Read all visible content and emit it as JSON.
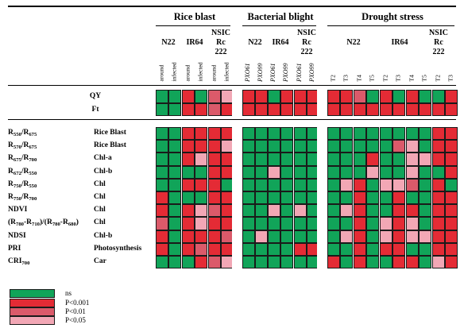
{
  "colors": {
    "ns": "#11a459",
    "p001": "#e42b35",
    "p01": "#db5a6a",
    "p05": "#f2a7b5",
    "gap": "#ffffff"
  },
  "header": {
    "groups": [
      "Rice blast",
      "Bacterial blight",
      "Drought stress"
    ],
    "genotypes": {
      "rb": [
        "N22",
        "IR64",
        "NSIC Rc 222"
      ],
      "bb": [
        "N22",
        "IR64",
        "NSIC Rc 222"
      ],
      "ds": [
        "N22",
        "IR64",
        "NSIC Rc 222"
      ]
    },
    "conditions": {
      "rb": [
        "around",
        "infected",
        "around",
        "infected",
        "around",
        "infected"
      ],
      "bb": [
        "PXO61",
        "PXO99",
        "PXO61",
        "PXO99",
        "PXO61",
        "PXO99"
      ],
      "ds": [
        "T2",
        "T3",
        "T4",
        "T5",
        "T2",
        "T3",
        "T4",
        "T5",
        "T2",
        "T3"
      ]
    }
  },
  "rows_top": [
    {
      "label": "QY"
    },
    {
      "label": "Ft"
    }
  ],
  "rows_main": [
    {
      "label_html": "R<sub>550</sub>/R<sub>675</sub>",
      "category": "Rice Blast"
    },
    {
      "label_html": "R<sub>570</sub>/R<sub>675</sub>",
      "category": "Rice Blast"
    },
    {
      "label_html": "R<sub>675</sub>/R<sub>700</sub>",
      "category": "Chl-a"
    },
    {
      "label_html": "R<sub>672</sub>/R<sub>550</sub>",
      "category": "Chl-b"
    },
    {
      "label_html": "R<sub>750</sub>/R<sub>550</sub>",
      "category": "Chl"
    },
    {
      "label_html": "R<sub>750</sub>/R<sub>700</sub>",
      "category": "Chl"
    },
    {
      "label_html": "NDVI",
      "category": "Chl"
    },
    {
      "label_html": "(R<sub>780</sub>-R<sub>710</sub>)/(R<sub>780</sub>-R<sub>680</sub>)",
      "category": "Chl"
    },
    {
      "label_html": "NDSI",
      "category": "Chl-b"
    },
    {
      "label_html": "PRI",
      "category": "Photosynthesis"
    },
    {
      "label_html": "CRI<sub>700</sub>",
      "category": "Car"
    }
  ],
  "legend": [
    {
      "key": "ns",
      "label": "ns"
    },
    {
      "key": "p001",
      "label": "P<0.001"
    },
    {
      "key": "p01",
      "label": "P<0.01"
    },
    {
      "key": "p05",
      "label": "P<0.05"
    }
  ],
  "chart_data": {
    "type": "heatmap",
    "value_legend": {
      "G": "ns",
      "R": "P<0.001",
      "M": "P<0.01",
      "P": "P<0.05"
    },
    "columns": [
      "Rice blast|N22|around",
      "Rice blast|N22|infected",
      "Rice blast|IR64|around",
      "Rice blast|IR64|infected",
      "Rice blast|NSIC Rc 222|around",
      "Rice blast|NSIC Rc 222|infected",
      "Bacterial blight|N22|PXO61",
      "Bacterial blight|N22|PXO99",
      "Bacterial blight|IR64|PXO61",
      "Bacterial blight|IR64|PXO99",
      "Bacterial blight|NSIC Rc 222|PXO61",
      "Bacterial blight|NSIC Rc 222|PXO99",
      "Drought stress|N22|T2",
      "Drought stress|N22|T3",
      "Drought stress|N22|T4",
      "Drought stress|N22|T5",
      "Drought stress|IR64|T2",
      "Drought stress|IR64|T3",
      "Drought stress|IR64|T4",
      "Drought stress|IR64|T5",
      "Drought stress|NSIC Rc 222|T2",
      "Drought stress|NSIC Rc 222|T3"
    ],
    "rows": {
      "QY": [
        "G",
        "G",
        "R",
        "G",
        "M",
        "P",
        "R",
        "R",
        "G",
        "R",
        "R",
        "R",
        "R",
        "R",
        "M",
        "G",
        "R",
        "G",
        "R",
        "G",
        "G",
        "R"
      ],
      "Ft": [
        "G",
        "G",
        "R",
        "R",
        "M",
        "R",
        "R",
        "R",
        "R",
        "R",
        "R",
        "R",
        "R",
        "R",
        "R",
        "R",
        "R",
        "R",
        "R",
        "R",
        "R",
        "R"
      ],
      "R550/R675": [
        "G",
        "G",
        "R",
        "R",
        "R",
        "R",
        "G",
        "G",
        "G",
        "G",
        "G",
        "G",
        "G",
        "G",
        "G",
        "G",
        "G",
        "G",
        "G",
        "G",
        "R",
        "R"
      ],
      "R570/R675": [
        "G",
        "G",
        "R",
        "R",
        "R",
        "P",
        "G",
        "G",
        "G",
        "G",
        "G",
        "G",
        "G",
        "G",
        "G",
        "G",
        "G",
        "M",
        "P",
        "G",
        "R",
        "R"
      ],
      "R675/R700": [
        "G",
        "G",
        "R",
        "P",
        "R",
        "R",
        "G",
        "G",
        "G",
        "G",
        "G",
        "G",
        "G",
        "G",
        "G",
        "R",
        "G",
        "G",
        "P",
        "P",
        "R",
        "R"
      ],
      "R672/R550": [
        "G",
        "G",
        "G",
        "G",
        "R",
        "R",
        "G",
        "G",
        "P",
        "G",
        "G",
        "G",
        "G",
        "G",
        "G",
        "P",
        "G",
        "G",
        "P",
        "G",
        "G",
        "R"
      ],
      "R750/R550": [
        "G",
        "G",
        "R",
        "R",
        "R",
        "G",
        "G",
        "G",
        "G",
        "G",
        "G",
        "G",
        "G",
        "P",
        "R",
        "G",
        "P",
        "P",
        "M",
        "G",
        "R",
        "G"
      ],
      "R750/R700": [
        "R",
        "G",
        "G",
        "G",
        "R",
        "R",
        "G",
        "G",
        "G",
        "G",
        "G",
        "G",
        "G",
        "G",
        "R",
        "G",
        "G",
        "R",
        "G",
        "G",
        "R",
        "R"
      ],
      "NDVI": [
        "R",
        "G",
        "R",
        "P",
        "M",
        "R",
        "G",
        "G",
        "P",
        "G",
        "P",
        "G",
        "G",
        "P",
        "R",
        "G",
        "G",
        "R",
        "R",
        "G",
        "R",
        "R"
      ],
      "(R780-R710)/(R780-R680)": [
        "M",
        "G",
        "R",
        "P",
        "R",
        "R",
        "G",
        "G",
        "G",
        "G",
        "G",
        "G",
        "G",
        "G",
        "R",
        "G",
        "P",
        "R",
        "P",
        "G",
        "R",
        "R"
      ],
      "NDSI": [
        "R",
        "G",
        "R",
        "R",
        "R",
        "M",
        "G",
        "P",
        "G",
        "G",
        "G",
        "G",
        "G",
        "P",
        "R",
        "G",
        "P",
        "R",
        "P",
        "P",
        "R",
        "R"
      ],
      "PRI": [
        "R",
        "G",
        "R",
        "M",
        "R",
        "R",
        "G",
        "G",
        "G",
        "G",
        "R",
        "R",
        "G",
        "G",
        "R",
        "G",
        "R",
        "R",
        "G",
        "G",
        "R",
        "R"
      ],
      "CRI700": [
        "G",
        "G",
        "G",
        "R",
        "M",
        "P",
        "G",
        "G",
        "G",
        "G",
        "G",
        "G",
        "R",
        "G",
        "R",
        "G",
        "G",
        "R",
        "R",
        "G",
        "P",
        "R"
      ]
    }
  }
}
